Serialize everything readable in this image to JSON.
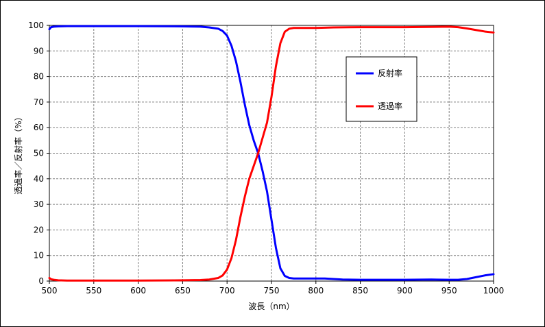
{
  "chart_data": {
    "type": "line",
    "xlabel": "波長（nm）",
    "ylabel": "透過率／反射率（%）",
    "xlim": [
      500,
      1000
    ],
    "ylim": [
      0,
      100
    ],
    "x_ticks": [
      "500",
      "550",
      "600",
      "650",
      "700",
      "750",
      "800",
      "850",
      "900",
      "950",
      "1000"
    ],
    "y_ticks": [
      "0",
      "10",
      "20",
      "30",
      "40",
      "50",
      "60",
      "70",
      "80",
      "90",
      "100"
    ],
    "grid": true,
    "legend_position": "top-right",
    "series": [
      {
        "name": "反射率",
        "color": "#0000ff",
        "x": [
          500,
          502,
          505,
          510,
          520,
          550,
          600,
          650,
          670,
          680,
          690,
          695,
          700,
          705,
          710,
          715,
          720,
          725,
          730,
          735,
          740,
          745,
          750,
          755,
          760,
          765,
          770,
          775,
          780,
          790,
          800,
          810,
          820,
          830,
          850,
          900,
          930,
          950,
          960,
          970,
          980,
          990,
          1000
        ],
        "y": [
          98.5,
          99.3,
          99.5,
          99.6,
          99.7,
          99.7,
          99.7,
          99.6,
          99.5,
          99.2,
          98.7,
          97.8,
          96,
          92,
          86,
          78,
          69,
          61,
          55,
          50,
          43,
          35,
          24,
          13,
          5,
          2,
          1.2,
          1,
          1,
          1,
          1,
          1,
          0.8,
          0.6,
          0.5,
          0.5,
          0.6,
          0.5,
          0.5,
          0.8,
          1.5,
          2.2,
          2.7
        ]
      },
      {
        "name": "透過率",
        "color": "#ff0000",
        "x": [
          500,
          502,
          505,
          510,
          520,
          550,
          600,
          650,
          670,
          680,
          690,
          695,
          700,
          705,
          710,
          715,
          720,
          725,
          730,
          735,
          740,
          745,
          750,
          755,
          760,
          765,
          770,
          775,
          780,
          800,
          820,
          850,
          900,
          950,
          960,
          970,
          980,
          990,
          1000
        ],
        "y": [
          1.2,
          0.7,
          0.5,
          0.3,
          0.2,
          0.2,
          0.2,
          0.3,
          0.4,
          0.6,
          1.2,
          2.2,
          4.5,
          9,
          16,
          25,
          33,
          40,
          45,
          50,
          56,
          62,
          72,
          84,
          93,
          97.5,
          98.7,
          99,
          99,
          99,
          99.2,
          99.3,
          99.3,
          99.5,
          99.3,
          98.8,
          98.2,
          97.6,
          97.2
        ]
      }
    ]
  }
}
